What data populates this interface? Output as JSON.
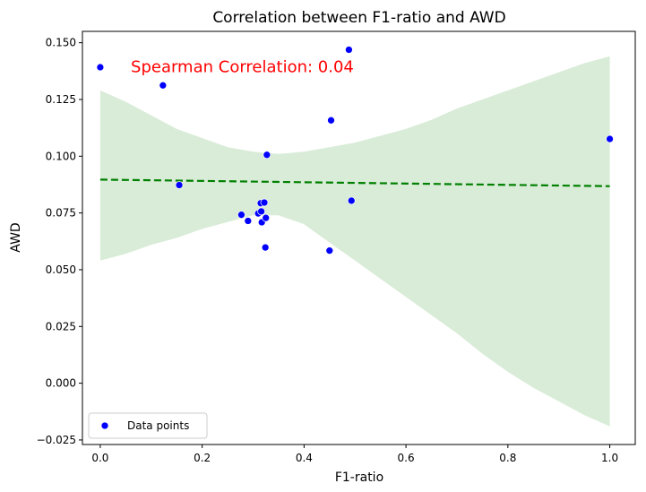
{
  "chart_data": {
    "type": "scatter",
    "title": "Correlation between F1-ratio and AWD",
    "xlabel": "F1-ratio",
    "ylabel": "AWD",
    "xlim": [
      -0.035,
      1.05
    ],
    "ylim": [
      -0.027,
      0.155
    ],
    "xticks": [
      0.0,
      0.2,
      0.4,
      0.6,
      0.8,
      1.0
    ],
    "xtick_labels": [
      "0.0",
      "0.2",
      "0.4",
      "0.6",
      "0.8",
      "1.0"
    ],
    "yticks": [
      -0.025,
      0.0,
      0.025,
      0.05,
      0.075,
      0.1,
      0.125,
      0.15
    ],
    "ytick_labels": [
      "−0.025",
      "0.000",
      "0.025",
      "0.050",
      "0.075",
      "0.100",
      "0.125",
      "0.150"
    ],
    "grid": false,
    "series": [
      {
        "name": "Data points",
        "color": "#0000ff",
        "points": [
          {
            "x": 0.0,
            "y": 0.1392
          },
          {
            "x": 0.123,
            "y": 0.1312
          },
          {
            "x": 0.155,
            "y": 0.0873
          },
          {
            "x": 0.277,
            "y": 0.0742
          },
          {
            "x": 0.29,
            "y": 0.0715
          },
          {
            "x": 0.31,
            "y": 0.0748
          },
          {
            "x": 0.315,
            "y": 0.0793
          },
          {
            "x": 0.316,
            "y": 0.0757
          },
          {
            "x": 0.317,
            "y": 0.0709
          },
          {
            "x": 0.322,
            "y": 0.0796
          },
          {
            "x": 0.324,
            "y": 0.0598
          },
          {
            "x": 0.325,
            "y": 0.0728
          },
          {
            "x": 0.327,
            "y": 0.1006
          },
          {
            "x": 0.45,
            "y": 0.0584
          },
          {
            "x": 0.453,
            "y": 0.1158
          },
          {
            "x": 0.488,
            "y": 0.1469
          },
          {
            "x": 0.493,
            "y": 0.0804
          },
          {
            "x": 1.0,
            "y": 0.1076
          }
        ]
      }
    ],
    "regression": {
      "style": "dashed",
      "color": "#008000",
      "x": [
        0.0,
        1.0
      ],
      "y": [
        0.0897,
        0.0868
      ]
    },
    "confidence_band": {
      "color": "#d9ecd8",
      "x": [
        0.0,
        0.05,
        0.1,
        0.15,
        0.2,
        0.25,
        0.3,
        0.35,
        0.4,
        0.45,
        0.5,
        0.55,
        0.6,
        0.65,
        0.7,
        0.75,
        0.8,
        0.85,
        0.9,
        0.95,
        1.0
      ],
      "upper": [
        0.129,
        0.124,
        0.118,
        0.112,
        0.108,
        0.104,
        0.102,
        0.101,
        0.102,
        0.104,
        0.106,
        0.109,
        0.112,
        0.116,
        0.121,
        0.125,
        0.129,
        0.133,
        0.137,
        0.141,
        0.144
      ],
      "lower": [
        0.054,
        0.057,
        0.061,
        0.064,
        0.068,
        0.071,
        0.074,
        0.074,
        0.07,
        0.062,
        0.054,
        0.046,
        0.038,
        0.03,
        0.022,
        0.013,
        0.005,
        -0.002,
        -0.008,
        -0.014,
        -0.019
      ]
    },
    "annotation": {
      "text": "Spearman Correlation: 0.04",
      "color": "#ff0000",
      "x": 0.06,
      "y": 0.137
    },
    "legend": {
      "location": "lower-left",
      "entries": [
        {
          "label": "Data points",
          "color": "#0000ff",
          "marker": "circle"
        }
      ]
    }
  }
}
